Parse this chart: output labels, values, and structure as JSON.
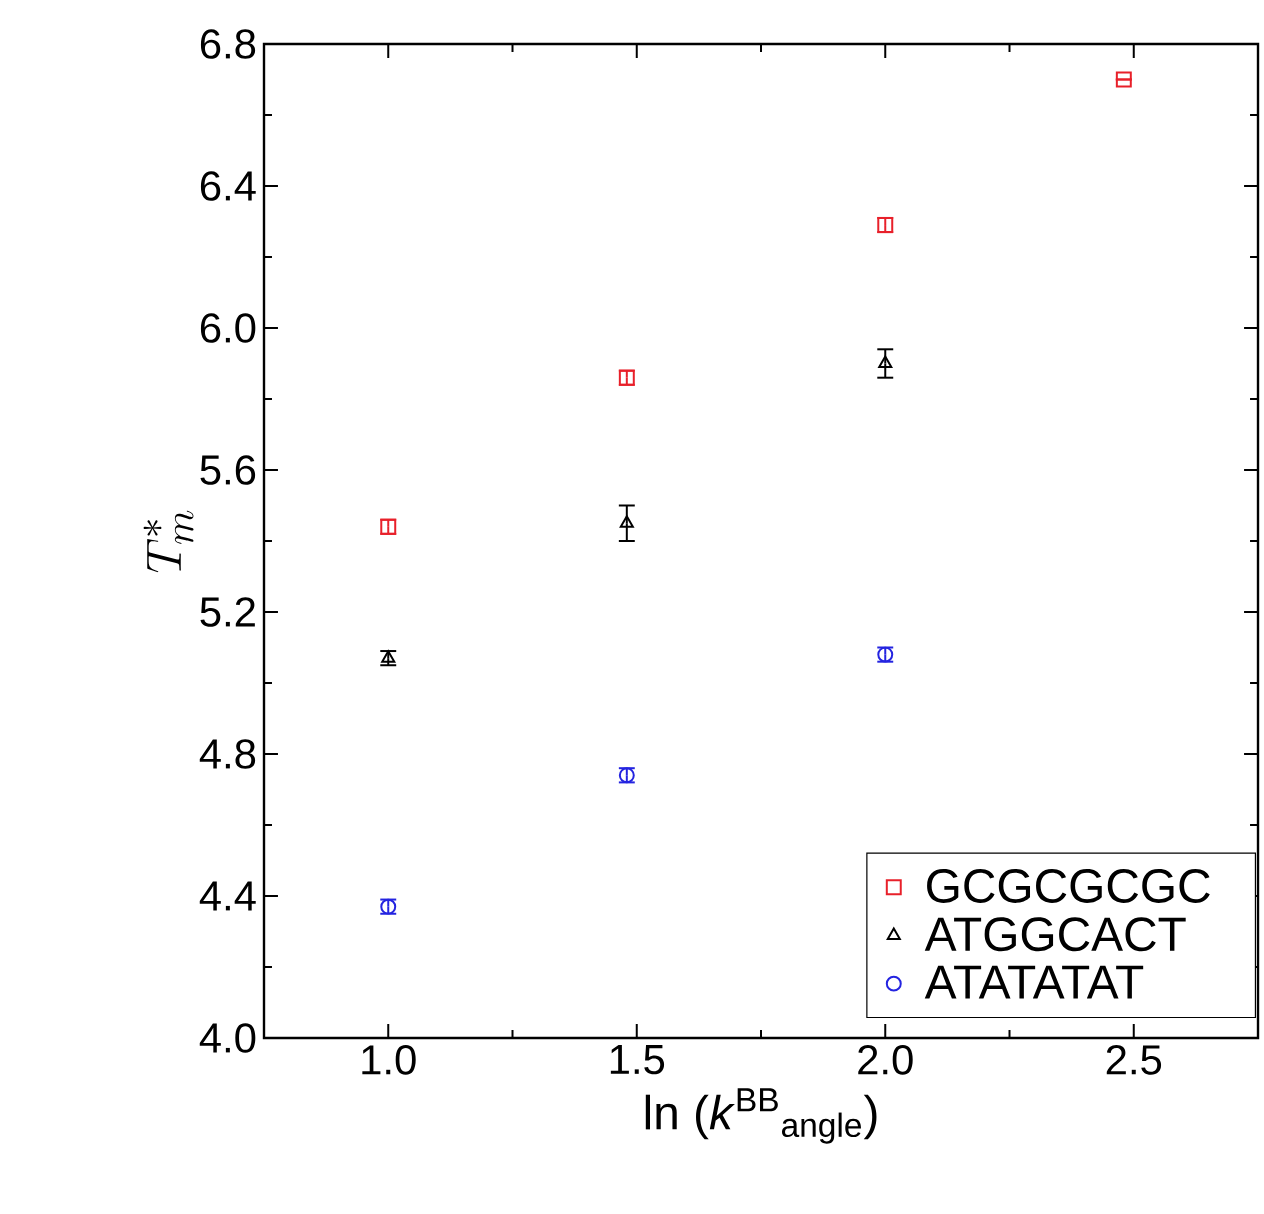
{
  "chart_data": {
    "type": "scatter",
    "xlabel": "ln (*k*$^{BB}$$_{angle}$)",
    "ylabel": "T^{*}_{m}",
    "xlim": [
      0.75,
      2.75
    ],
    "ylim": [
      4.0,
      6.8
    ],
    "xticks": [
      {
        "value": 1.0,
        "label": "1.0"
      },
      {
        "value": 1.5,
        "label": "1.5"
      },
      {
        "value": 2.0,
        "label": "2.0"
      },
      {
        "value": 2.5,
        "label": "2.5"
      }
    ],
    "yticks": [
      {
        "value": 4.0,
        "label": "4.0"
      },
      {
        "value": 4.4,
        "label": "4.4"
      },
      {
        "value": 4.8,
        "label": "4.8"
      },
      {
        "value": 5.2,
        "label": "5.2"
      },
      {
        "value": 5.6,
        "label": "5.6"
      },
      {
        "value": 6.0,
        "label": "6.0"
      },
      {
        "value": 6.4,
        "label": "6.4"
      },
      {
        "value": 6.8,
        "label": "6.8"
      }
    ],
    "legend": "bottom right",
    "series": [
      {
        "name": "GCGCGCGC",
        "color": "#e8202a",
        "marker": "square",
        "x": [
          1.0,
          1.48,
          2.0,
          2.48
        ],
        "values": [
          5.44,
          5.86,
          6.29,
          6.7
        ],
        "errors": [
          0.02,
          0.02,
          0.02,
          null
        ]
      },
      {
        "name": "ATGGCACT",
        "color": "#000000",
        "marker": "triangle",
        "x": [
          1.0,
          1.48,
          2.0
        ],
        "values": [
          5.07,
          5.45,
          5.9
        ],
        "errors": [
          0.02,
          0.05,
          0.04
        ]
      },
      {
        "name": "ATATATAT",
        "color": "#2424e0",
        "marker": "circle",
        "x": [
          1.0,
          1.48,
          2.0
        ],
        "values": [
          4.37,
          4.74,
          5.08
        ],
        "errors": [
          0.02,
          0.02,
          0.02
        ]
      }
    ]
  }
}
